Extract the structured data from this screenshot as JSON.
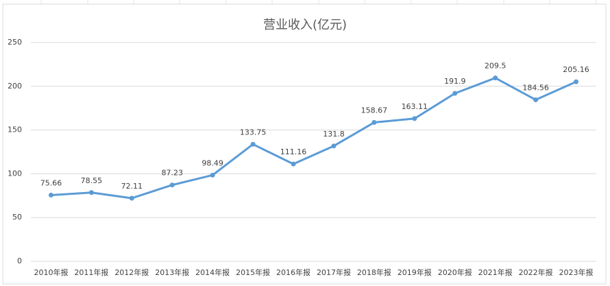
{
  "chart_data": {
    "type": "line",
    "title": "营业收入(亿元)",
    "categories": [
      "2010年报",
      "2011年报",
      "2012年报",
      "2013年报",
      "2014年报",
      "2015年报",
      "2016年报",
      "2017年报",
      "2018年报",
      "2019年报",
      "2020年报",
      "2021年报",
      "2022年报",
      "2023年报"
    ],
    "values": [
      75.66,
      78.55,
      72.11,
      87.23,
      98.49,
      133.75,
      111.16,
      131.8,
      158.67,
      163.11,
      191.9,
      209.5,
      184.56,
      205.16
    ],
    "color": "#5b9bd5",
    "ylim": [
      0,
      250
    ],
    "yticks": [
      0,
      50,
      100,
      150,
      200,
      250
    ],
    "grid": true
  }
}
